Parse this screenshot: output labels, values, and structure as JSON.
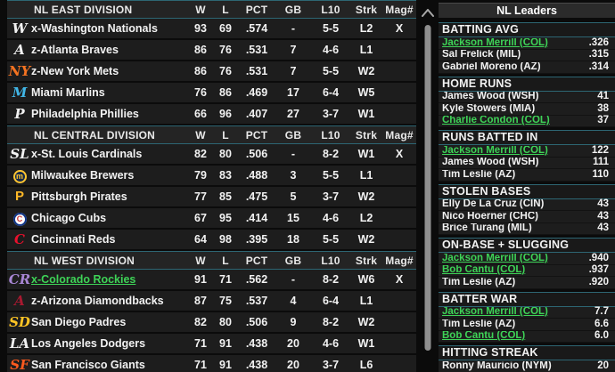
{
  "standings": {
    "columns": [
      "W",
      "L",
      "PCT",
      "GB",
      "L10",
      "Strk",
      "Mag#"
    ],
    "divisions": [
      {
        "title": "NL EAST DIVISION",
        "teams": [
          {
            "name": "x-Washington Nationals",
            "w": "93",
            "l": "69",
            "pct": ".574",
            "gb": "-",
            "l10": "5-5",
            "strk": "L2",
            "mag": "X",
            "logo": {
              "glyph": "W",
              "color": "#f2f2f2",
              "script": true
            }
          },
          {
            "name": "z-Atlanta Braves",
            "w": "86",
            "l": "76",
            "pct": ".531",
            "gb": "7",
            "l10": "4-6",
            "strk": "L1",
            "mag": "",
            "logo": {
              "glyph": "A",
              "color": "#f2f2f2",
              "script": true
            }
          },
          {
            "name": "z-New York Mets",
            "w": "86",
            "l": "76",
            "pct": ".531",
            "gb": "7",
            "l10": "5-5",
            "strk": "W2",
            "mag": "",
            "logo": {
              "glyph": "NY",
              "color": "#f47321",
              "script": true
            }
          },
          {
            "name": "Miami Marlins",
            "w": "76",
            "l": "86",
            "pct": ".469",
            "gb": "17",
            "l10": "6-4",
            "strk": "W5",
            "mag": "",
            "logo": {
              "glyph": "M",
              "color": "#41b6e6",
              "script": true
            }
          },
          {
            "name": "Philadelphia Phillies",
            "w": "66",
            "l": "96",
            "pct": ".407",
            "gb": "27",
            "l10": "3-7",
            "strk": "W1",
            "mag": "",
            "logo": {
              "glyph": "P",
              "color": "#f2f2f2",
              "script": true
            }
          }
        ]
      },
      {
        "title": "NL CENTRAL DIVISION",
        "teams": [
          {
            "name": "x-St. Louis Cardinals",
            "w": "82",
            "l": "80",
            "pct": ".506",
            "gb": "-",
            "l10": "8-2",
            "strk": "W1",
            "mag": "X",
            "logo": {
              "glyph": "SL",
              "color": "#f2f2f2",
              "script": true
            }
          },
          {
            "name": "Milwaukee Brewers",
            "w": "79",
            "l": "83",
            "pct": ".488",
            "gb": "3",
            "l10": "5-5",
            "strk": "L1",
            "mag": "",
            "logo": {
              "glyph": "m",
              "color": "#ffc52f",
              "circle": "#12284b",
              "ring": "#ffc52f"
            }
          },
          {
            "name": "Pittsburgh Pirates",
            "w": "77",
            "l": "85",
            "pct": ".475",
            "gb": "5",
            "l10": "3-7",
            "strk": "W2",
            "mag": "",
            "logo": {
              "glyph": "P",
              "color": "#fdb827"
            }
          },
          {
            "name": "Chicago Cubs",
            "w": "67",
            "l": "95",
            "pct": ".414",
            "gb": "15",
            "l10": "4-6",
            "strk": "L2",
            "mag": "",
            "logo": {
              "glyph": "C",
              "color": "#cc3433",
              "circle": "#ffffff",
              "ring": "#0e3386"
            }
          },
          {
            "name": "Cincinnati Reds",
            "w": "64",
            "l": "98",
            "pct": ".395",
            "gb": "18",
            "l10": "5-5",
            "strk": "W2",
            "mag": "",
            "logo": {
              "glyph": "C",
              "color": "#e8112d",
              "script": true
            }
          }
        ]
      },
      {
        "title": "NL WEST DIVISION",
        "teams": [
          {
            "name": "x-Colorado Rockies",
            "highlight": true,
            "w": "91",
            "l": "71",
            "pct": ".562",
            "gb": "-",
            "l10": "8-2",
            "strk": "W6",
            "mag": "X",
            "logo": {
              "glyph": "CR",
              "color": "#a886d4",
              "script": true
            }
          },
          {
            "name": "z-Arizona Diamondbacks",
            "w": "87",
            "l": "75",
            "pct": ".537",
            "gb": "4",
            "l10": "6-4",
            "strk": "L1",
            "mag": "",
            "logo": {
              "glyph": "A",
              "color": "#a71930",
              "script": true
            }
          },
          {
            "name": "San Diego Padres",
            "w": "82",
            "l": "80",
            "pct": ".506",
            "gb": "9",
            "l10": "8-2",
            "strk": "W2",
            "mag": "",
            "logo": {
              "glyph": "SD",
              "color": "#ffc425",
              "script": true
            }
          },
          {
            "name": "Los Angeles Dodgers",
            "w": "71",
            "l": "91",
            "pct": ".438",
            "gb": "20",
            "l10": "4-6",
            "strk": "W1",
            "mag": "",
            "logo": {
              "glyph": "LA",
              "color": "#f2f2f2",
              "script": true
            }
          },
          {
            "name": "San Francisco Giants",
            "w": "71",
            "l": "91",
            "pct": ".438",
            "gb": "20",
            "l10": "3-7",
            "strk": "L6",
            "mag": "",
            "logo": {
              "glyph": "SF",
              "color": "#fd5a1e",
              "script": true
            }
          }
        ]
      }
    ]
  },
  "leaders": {
    "title": "NL Leaders",
    "sections": [
      {
        "title": "BATTING AVG",
        "rows": [
          {
            "name": "Jackson Merrill (COL)",
            "value": ".326",
            "highlight": true
          },
          {
            "name": "Sal Frelick (MIL)",
            "value": ".315"
          },
          {
            "name": "Gabriel Moreno (AZ)",
            "value": ".314"
          }
        ]
      },
      {
        "title": "HOME RUNS",
        "rows": [
          {
            "name": "James Wood (WSH)",
            "value": "41"
          },
          {
            "name": "Kyle Stowers (MIA)",
            "value": "38"
          },
          {
            "name": "Charlie Condon (COL)",
            "value": "37",
            "highlight": true
          }
        ]
      },
      {
        "title": "RUNS BATTED IN",
        "rows": [
          {
            "name": "Jackson Merrill (COL)",
            "value": "122",
            "highlight": true
          },
          {
            "name": "James Wood (WSH)",
            "value": "111"
          },
          {
            "name": "Tim Leslie (AZ)",
            "value": "110"
          }
        ]
      },
      {
        "title": "STOLEN BASES",
        "rows": [
          {
            "name": "Elly De La Cruz (CIN)",
            "value": "43"
          },
          {
            "name": "Nico Hoerner (CHC)",
            "value": "43"
          },
          {
            "name": "Brice Turang (MIL)",
            "value": "43"
          }
        ]
      },
      {
        "title": "ON-BASE + SLUGGING",
        "rows": [
          {
            "name": "Jackson Merrill (COL)",
            "value": ".940",
            "highlight": true
          },
          {
            "name": "Bob Cantu (COL)",
            "value": ".937",
            "highlight": true
          },
          {
            "name": "Tim Leslie (AZ)",
            "value": ".920"
          }
        ]
      },
      {
        "title": "BATTER WAR",
        "rows": [
          {
            "name": "Jackson Merrill (COL)",
            "value": "7.7",
            "highlight": true
          },
          {
            "name": "Tim Leslie (AZ)",
            "value": "6.6"
          },
          {
            "name": "Bob Cantu (COL)",
            "value": "6.0",
            "highlight": true
          }
        ]
      },
      {
        "title": "HITTING STREAK",
        "rows": [
          {
            "name": "Ronny Mauricio (NYM)",
            "value": "20"
          }
        ]
      }
    ]
  },
  "colors": {
    "accent_teal": "#2d6673",
    "highlight_green": "#3ed357",
    "row_bg": "#1d1d1d"
  },
  "icons": {
    "scroll_up": "chevron-up-icon"
  }
}
